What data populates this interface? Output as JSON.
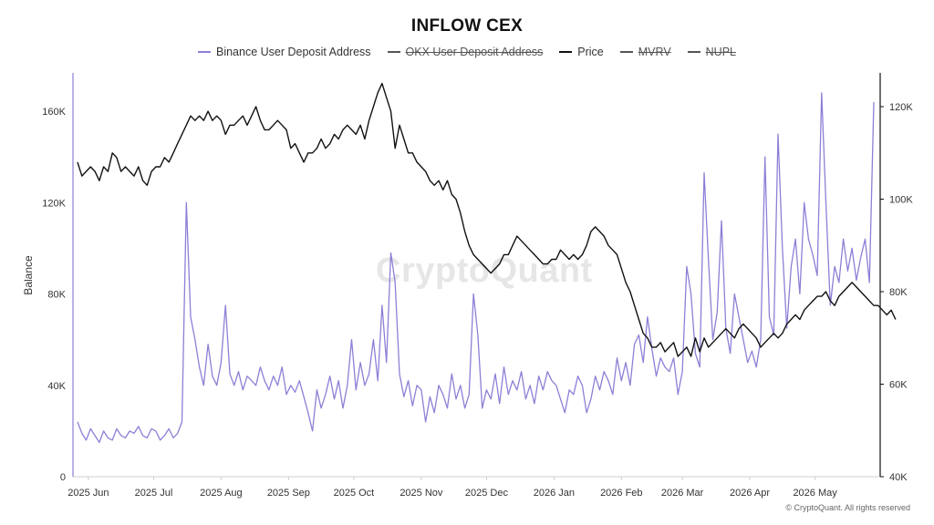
{
  "title": "INFLOW CEX",
  "watermark": "CryptoQuant",
  "copyright": "© CryptoQuant. All rights reserved",
  "legend": [
    {
      "label": "Binance User Deposit Address",
      "color": "#8b80d6",
      "hidden": false
    },
    {
      "label": "OKX User Deposit Address",
      "color": "#555555",
      "hidden": true
    },
    {
      "label": "Price",
      "color": "#111111",
      "hidden": false
    },
    {
      "label": "MVRV",
      "color": "#555555",
      "hidden": true
    },
    {
      "label": "NUPL",
      "color": "#555555",
      "hidden": true
    }
  ],
  "chart_data": {
    "type": "line",
    "title": "INFLOW CEX",
    "ylabel": "Balance",
    "ylabel_right": "",
    "x_ticks": [
      "2025 Jun",
      "2025 Jul",
      "2025 Aug",
      "2025 Sep",
      "2025 Oct",
      "2025 Nov",
      "2025 Dec",
      "2026 Jan",
      "2026 Feb",
      "2026 Mar",
      "2026 Apr",
      "2026 May"
    ],
    "y_left": {
      "ticks": [
        "0",
        "40K",
        "80K",
        "120K",
        "160K"
      ],
      "range": [
        0,
        160000
      ]
    },
    "y_right": {
      "ticks": [
        "40K",
        "60K",
        "80K",
        "100K",
        "120K"
      ],
      "range": [
        40000,
        120000
      ]
    },
    "grid": false,
    "legend_position": "top-center",
    "series": [
      {
        "name": "Binance User Deposit Address",
        "axis": "left",
        "color": "#8b80d6",
        "x_start": "2025-05-27",
        "x_step_days": 2,
        "values": [
          24000,
          19000,
          16000,
          21000,
          18000,
          15000,
          20000,
          17000,
          16000,
          21000,
          18000,
          17000,
          20000,
          19000,
          22000,
          18000,
          17000,
          21000,
          20000,
          16000,
          18000,
          21000,
          17000,
          19000,
          24000,
          120000,
          70000,
          60000,
          48000,
          40000,
          58000,
          44000,
          40000,
          50000,
          75000,
          45000,
          40000,
          46000,
          38000,
          44000,
          42000,
          40000,
          48000,
          42000,
          38000,
          44000,
          40000,
          48000,
          36000,
          40000,
          37000,
          42000,
          35000,
          28000,
          20000,
          38000,
          30000,
          36000,
          44000,
          34000,
          42000,
          30000,
          40000,
          60000,
          38000,
          50000,
          40000,
          45000,
          60000,
          42000,
          75000,
          50000,
          98000,
          85000,
          45000,
          35000,
          42000,
          31000,
          40000,
          38000,
          24000,
          35000,
          28000,
          40000,
          36000,
          30000,
          45000,
          34000,
          40000,
          30000,
          36000,
          80000,
          62000,
          30000,
          38000,
          34000,
          45000,
          32000,
          48000,
          36000,
          42000,
          38000,
          46000,
          34000,
          40000,
          32000,
          44000,
          38000,
          46000,
          42000,
          40000,
          34000,
          28000,
          38000,
          36000,
          44000,
          40000,
          28000,
          34000,
          44000,
          38000,
          46000,
          42000,
          36000,
          52000,
          42000,
          50000,
          40000,
          58000,
          62000,
          50000,
          70000,
          56000,
          44000,
          52000,
          48000,
          46000,
          52000,
          36000,
          46000,
          92000,
          80000,
          54000,
          48000,
          133000,
          95000,
          60000,
          72000,
          112000,
          65000,
          54000,
          80000,
          70000,
          60000,
          50000,
          55000,
          48000,
          60000,
          140000,
          70000,
          62000,
          150000,
          100000,
          65000,
          92000,
          104000,
          80000,
          120000,
          104000,
          97000,
          88000,
          168000,
          120000,
          75000,
          92000,
          85000,
          104000,
          90000,
          100000,
          86000,
          96000,
          104000,
          85000,
          164000
        ],
        "hidden": false
      },
      {
        "name": "Price",
        "axis": "right",
        "color": "#111111",
        "x_start": "2025-05-27",
        "x_step_days": 2,
        "values": [
          108000,
          105000,
          106000,
          107000,
          106000,
          104000,
          107000,
          106000,
          110000,
          109000,
          106000,
          107000,
          106000,
          105000,
          107000,
          104000,
          103000,
          106000,
          107000,
          107000,
          109000,
          108000,
          110000,
          112000,
          114000,
          116000,
          118000,
          117000,
          118000,
          117000,
          119000,
          117000,
          118000,
          117000,
          114000,
          116000,
          116000,
          117000,
          118000,
          116000,
          118000,
          120000,
          117000,
          115000,
          115000,
          116000,
          117000,
          116000,
          115000,
          111000,
          112000,
          110000,
          108000,
          110000,
          110000,
          111000,
          113000,
          111000,
          112000,
          114000,
          113000,
          115000,
          116000,
          115000,
          114000,
          116000,
          113000,
          117000,
          120000,
          123000,
          125000,
          122000,
          119000,
          111000,
          116000,
          113000,
          110000,
          110000,
          108000,
          107000,
          106000,
          104000,
          103000,
          104000,
          102000,
          104000,
          101000,
          100000,
          97000,
          93000,
          90000,
          88000,
          87000,
          86000,
          85000,
          84000,
          85000,
          86000,
          88000,
          88000,
          90000,
          92000,
          91000,
          90000,
          89000,
          88000,
          87000,
          86000,
          86000,
          87000,
          87000,
          89000,
          88000,
          87000,
          88000,
          87000,
          88000,
          90000,
          93000,
          94000,
          93000,
          92000,
          90000,
          89000,
          88000,
          85000,
          82000,
          80000,
          77000,
          74000,
          71000,
          70000,
          68000,
          68000,
          69000,
          67000,
          68000,
          69000,
          66000,
          67000,
          68000,
          66000,
          70000,
          67000,
          70000,
          68000,
          69000,
          70000,
          71000,
          72000,
          71000,
          70000,
          72000,
          73000,
          72000,
          71000,
          70000,
          68000,
          69000,
          70000,
          71000,
          70000,
          71000,
          73000,
          74000,
          75000,
          74000,
          76000,
          77000,
          78000,
          79000,
          79000,
          80000,
          78000,
          77000,
          79000,
          80000,
          81000,
          82000,
          81000,
          80000,
          79000,
          78000,
          77000,
          77000,
          76000,
          75000,
          76000,
          74000
        ],
        "hidden": false
      }
    ]
  }
}
